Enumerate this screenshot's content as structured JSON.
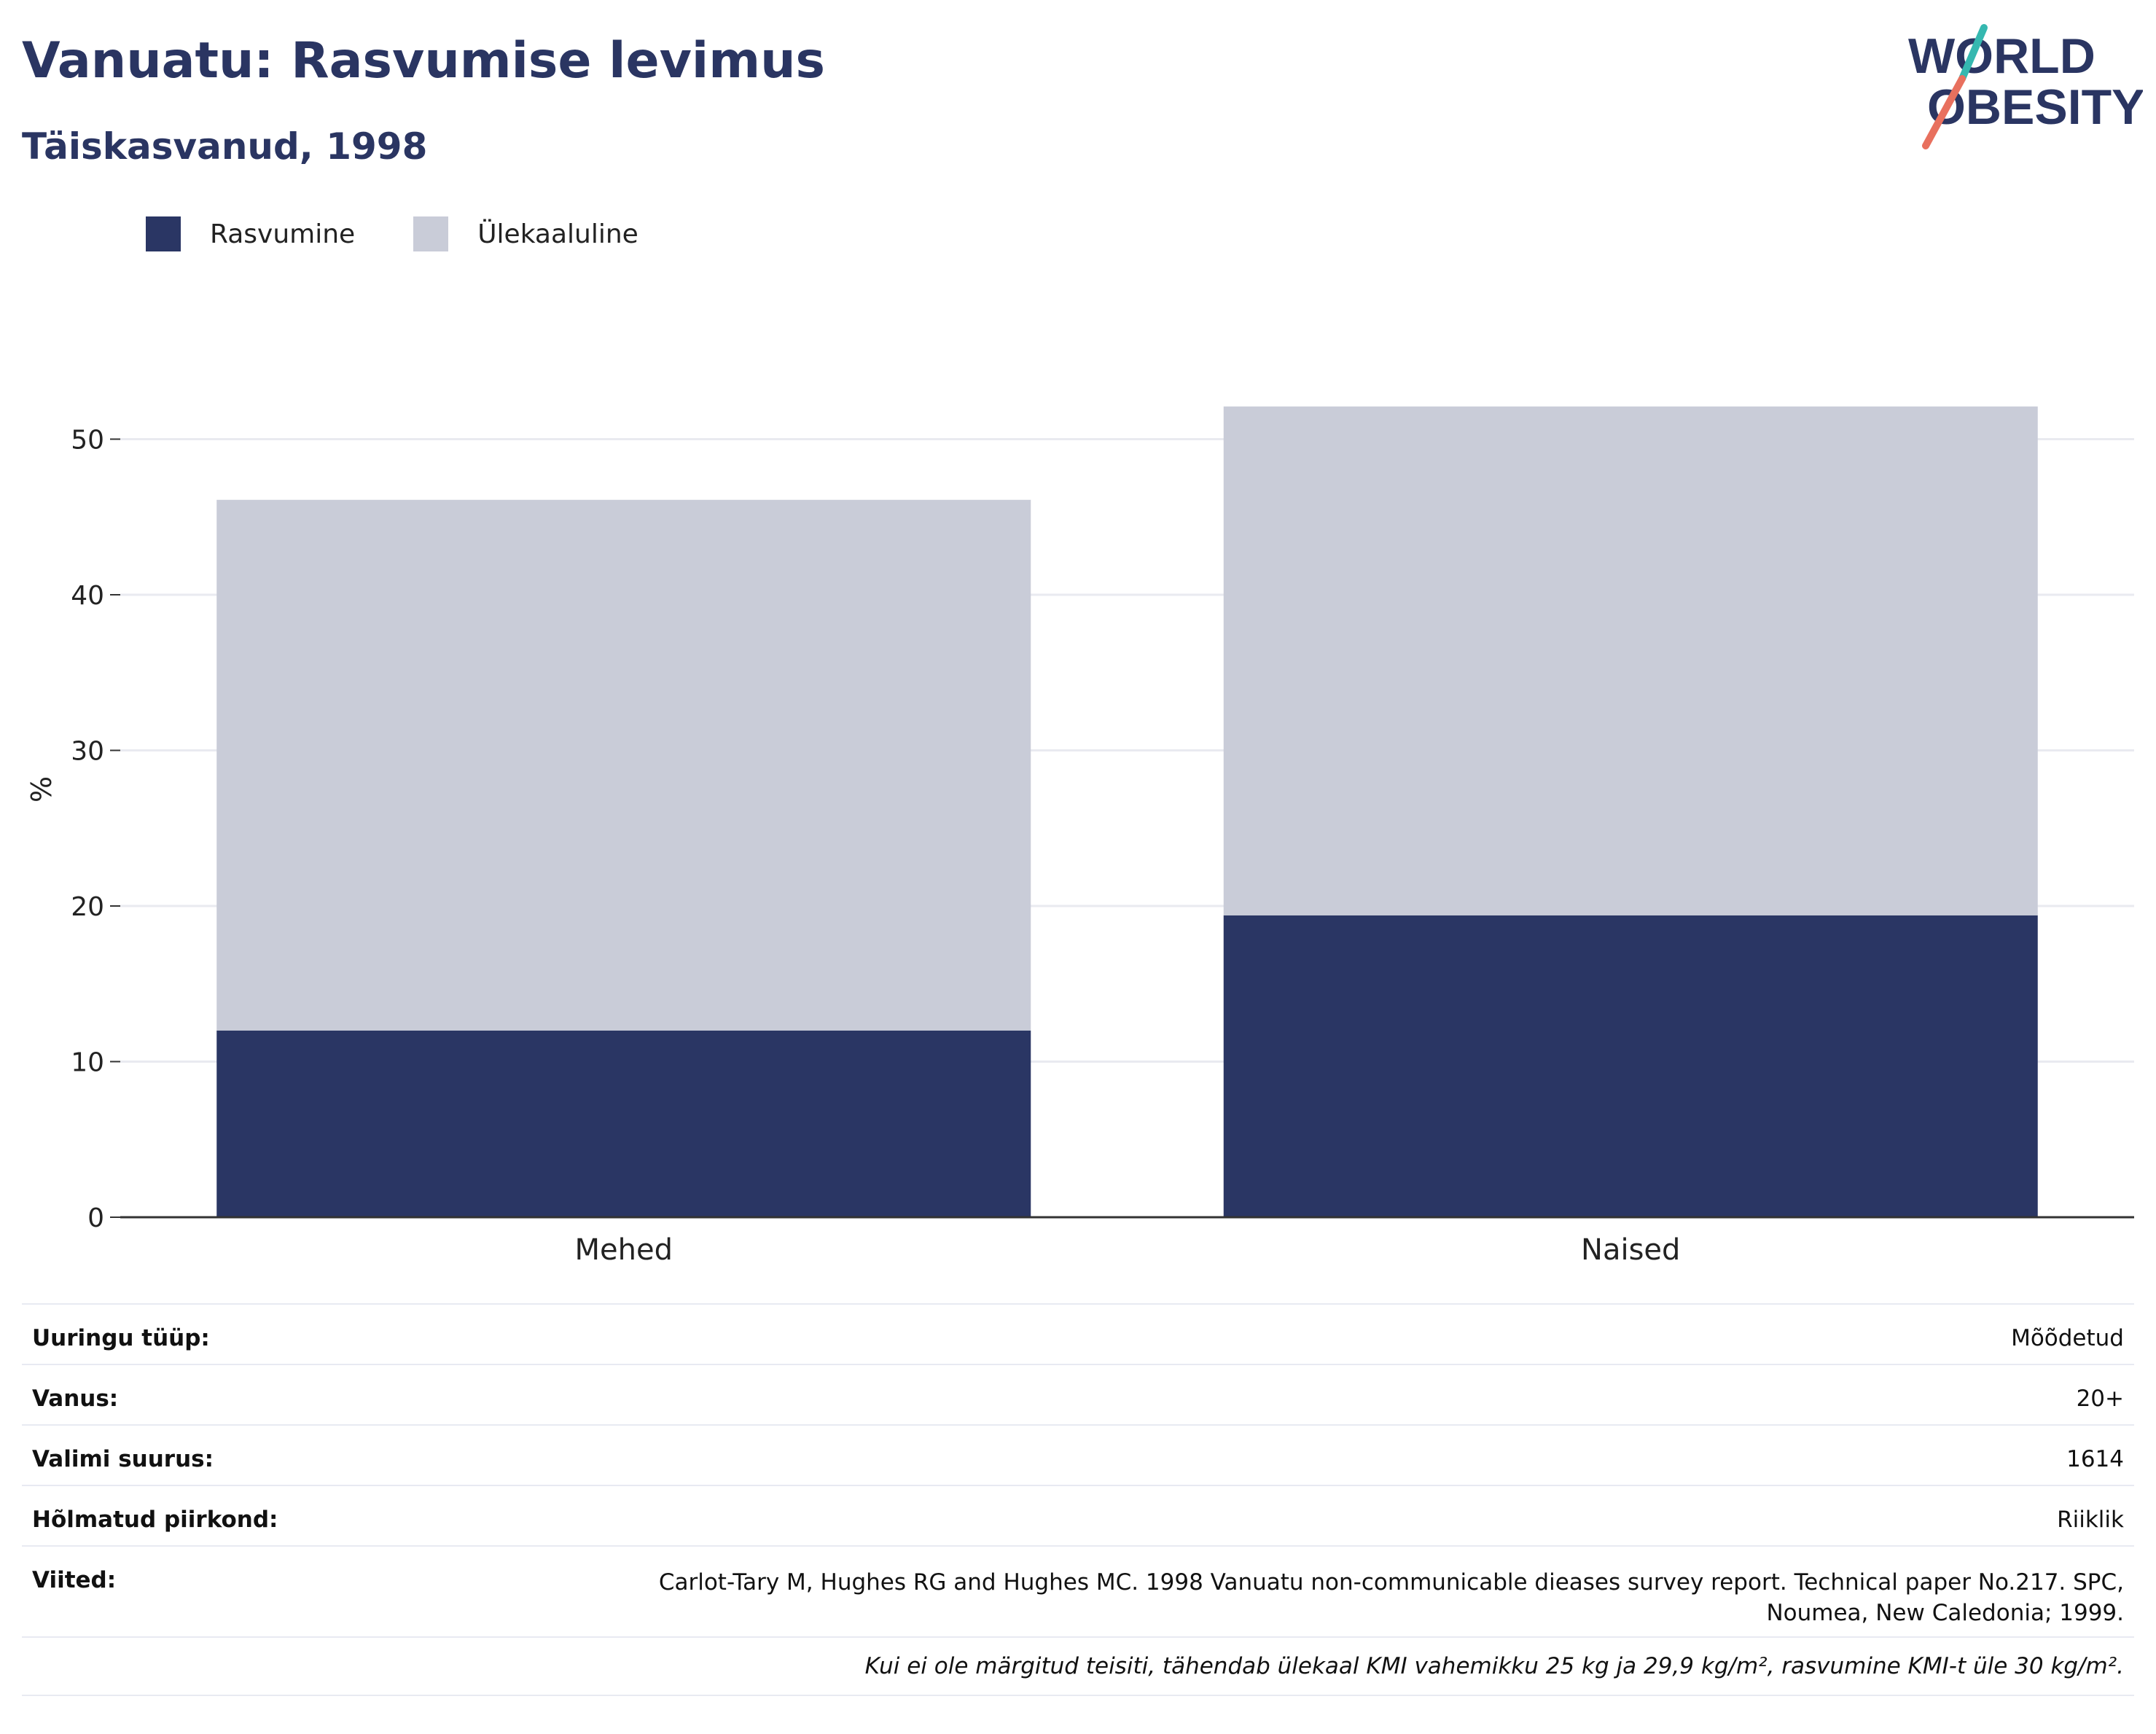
{
  "header": {
    "title": "Vanuatu: Rasvumise levimus",
    "subtitle": "Täiskasvanud, 1998"
  },
  "logo": {
    "line1": "WORLD",
    "line2": "OBESITY"
  },
  "colors": {
    "obesity": "#2a3664",
    "overweight": "#c9ccd8",
    "text": "#2a3562"
  },
  "chart_data": {
    "type": "bar",
    "stacked": true,
    "categories": [
      "Mehed",
      "Naised"
    ],
    "series": [
      {
        "name": "Rasvumine",
        "values": [
          12.0,
          19.4
        ],
        "color": "#2a3664"
      },
      {
        "name": "Ülekaaluline",
        "values": [
          34.1,
          32.7
        ],
        "color": "#c9ccd8"
      }
    ],
    "ylabel": "%",
    "xlabel": "",
    "ylim": [
      0,
      55
    ],
    "yticks": [
      0,
      10,
      20,
      30,
      40,
      50
    ],
    "grid": true,
    "legend": "top-left"
  },
  "info": {
    "rows": [
      {
        "key": "Uuringu tüüp:",
        "value": "Mõõdetud"
      },
      {
        "key": "Vanus:",
        "value": "20+"
      },
      {
        "key": "Valimi suurus:",
        "value": "1614"
      },
      {
        "key": "Hõlmatud piirkond:",
        "value": "Riiklik"
      },
      {
        "key": "Viited:",
        "value": "Carlot-Tary M, Hughes RG and Hughes MC. 1998 Vanuatu non-communicable dieases survey report. Technical paper No.217. SPC, Noumea, New Caledonia; 1999."
      }
    ],
    "note": "Kui ei ole märgitud teisiti, tähendab ülekaal KMI vahemikku 25 kg ja 29,9 kg/m², rasvumine KMI-t üle 30 kg/m²."
  }
}
